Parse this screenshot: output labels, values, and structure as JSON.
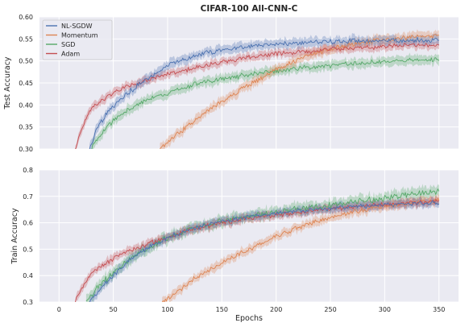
{
  "chart_data": [
    {
      "type": "line",
      "title": "CIFAR-100 All-CNN-C",
      "xlabel": "",
      "ylabel": "Test Accuracy",
      "xlim": [
        -18,
        368
      ],
      "ylim": [
        0.3,
        0.6
      ],
      "xticks": [
        0,
        50,
        100,
        150,
        200,
        250,
        300,
        350
      ],
      "yticks": [
        0.3,
        0.35,
        0.4,
        0.45,
        0.5,
        0.55,
        0.6
      ],
      "ytick_labels": [
        "0.30",
        "0.35",
        "0.40",
        "0.45",
        "0.50",
        "0.55",
        "0.60"
      ],
      "grid": true,
      "legend_position": "upper-left",
      "series": [
        {
          "name": "NL-SGDW",
          "color": "#4c72b0",
          "x": [
            28,
            35,
            45,
            55,
            65,
            80,
            100,
            125,
            150,
            175,
            200,
            250,
            300,
            350
          ],
          "values": [
            0.3,
            0.348,
            0.383,
            0.41,
            0.43,
            0.458,
            0.49,
            0.512,
            0.525,
            0.533,
            0.538,
            0.544,
            0.546,
            0.548
          ],
          "noise": 0.0045
        },
        {
          "name": "Momentum",
          "color": "#dd8452",
          "x": [
            93,
            100,
            110,
            125,
            150,
            175,
            200,
            225,
            250,
            275,
            300,
            325,
            350
          ],
          "values": [
            0.3,
            0.315,
            0.335,
            0.365,
            0.41,
            0.445,
            0.48,
            0.51,
            0.528,
            0.54,
            0.549,
            0.554,
            0.556
          ],
          "noise": 0.0045
        },
        {
          "name": "SGD",
          "color": "#55a868",
          "x": [
            30,
            40,
            50,
            65,
            80,
            100,
            125,
            150,
            175,
            200,
            250,
            300,
            350
          ],
          "values": [
            0.3,
            0.338,
            0.365,
            0.39,
            0.41,
            0.427,
            0.447,
            0.458,
            0.469,
            0.477,
            0.49,
            0.499,
            0.505
          ],
          "noise": 0.0045
        },
        {
          "name": "Adam",
          "color": "#c44e52",
          "x": [
            15,
            20,
            25,
            30,
            40,
            50,
            60,
            75,
            100,
            125,
            150,
            175,
            200,
            250,
            300,
            350
          ],
          "values": [
            0.3,
            0.34,
            0.368,
            0.392,
            0.412,
            0.427,
            0.44,
            0.452,
            0.47,
            0.484,
            0.498,
            0.508,
            0.516,
            0.526,
            0.533,
            0.537
          ],
          "noise": 0.004
        }
      ]
    },
    {
      "type": "line",
      "title": "",
      "xlabel": "Epochs",
      "ylabel": "Train Accuracy",
      "xlim": [
        -18,
        368
      ],
      "ylim": [
        0.3,
        0.8
      ],
      "xticks": [
        0,
        50,
        100,
        150,
        200,
        250,
        300,
        350
      ],
      "yticks": [
        0.3,
        0.4,
        0.5,
        0.6,
        0.7,
        0.8
      ],
      "ytick_labels": [
        "0.3",
        "0.4",
        "0.5",
        "0.6",
        "0.7",
        "0.8"
      ],
      "grid": true,
      "series": [
        {
          "name": "NL-SGDW",
          "color": "#4c72b0",
          "x": [
            28,
            40,
            50,
            60,
            75,
            100,
            125,
            150,
            175,
            200,
            250,
            300,
            350
          ],
          "values": [
            0.3,
            0.36,
            0.4,
            0.44,
            0.49,
            0.545,
            0.58,
            0.605,
            0.623,
            0.637,
            0.655,
            0.668,
            0.675
          ],
          "noise": 0.007
        },
        {
          "name": "Momentum",
          "color": "#dd8452",
          "x": [
            95,
            100,
            110,
            125,
            150,
            175,
            200,
            225,
            250,
            275,
            300,
            325,
            350
          ],
          "values": [
            0.3,
            0.315,
            0.34,
            0.39,
            0.45,
            0.5,
            0.55,
            0.59,
            0.62,
            0.645,
            0.662,
            0.675,
            0.685
          ],
          "noise": 0.007
        },
        {
          "name": "SGD",
          "color": "#55a868",
          "x": [
            25,
            40,
            50,
            60,
            75,
            100,
            125,
            150,
            175,
            200,
            250,
            300,
            350
          ],
          "values": [
            0.3,
            0.375,
            0.41,
            0.445,
            0.49,
            0.545,
            0.58,
            0.605,
            0.625,
            0.641,
            0.668,
            0.693,
            0.72
          ],
          "noise": 0.009
        },
        {
          "name": "Adam",
          "color": "#c44e52",
          "x": [
            15,
            20,
            25,
            30,
            40,
            50,
            60,
            75,
            100,
            125,
            150,
            175,
            200,
            250,
            300,
            350
          ],
          "values": [
            0.3,
            0.345,
            0.38,
            0.41,
            0.44,
            0.465,
            0.49,
            0.51,
            0.545,
            0.578,
            0.6,
            0.618,
            0.63,
            0.653,
            0.67,
            0.68
          ],
          "noise": 0.007
        }
      ]
    }
  ]
}
